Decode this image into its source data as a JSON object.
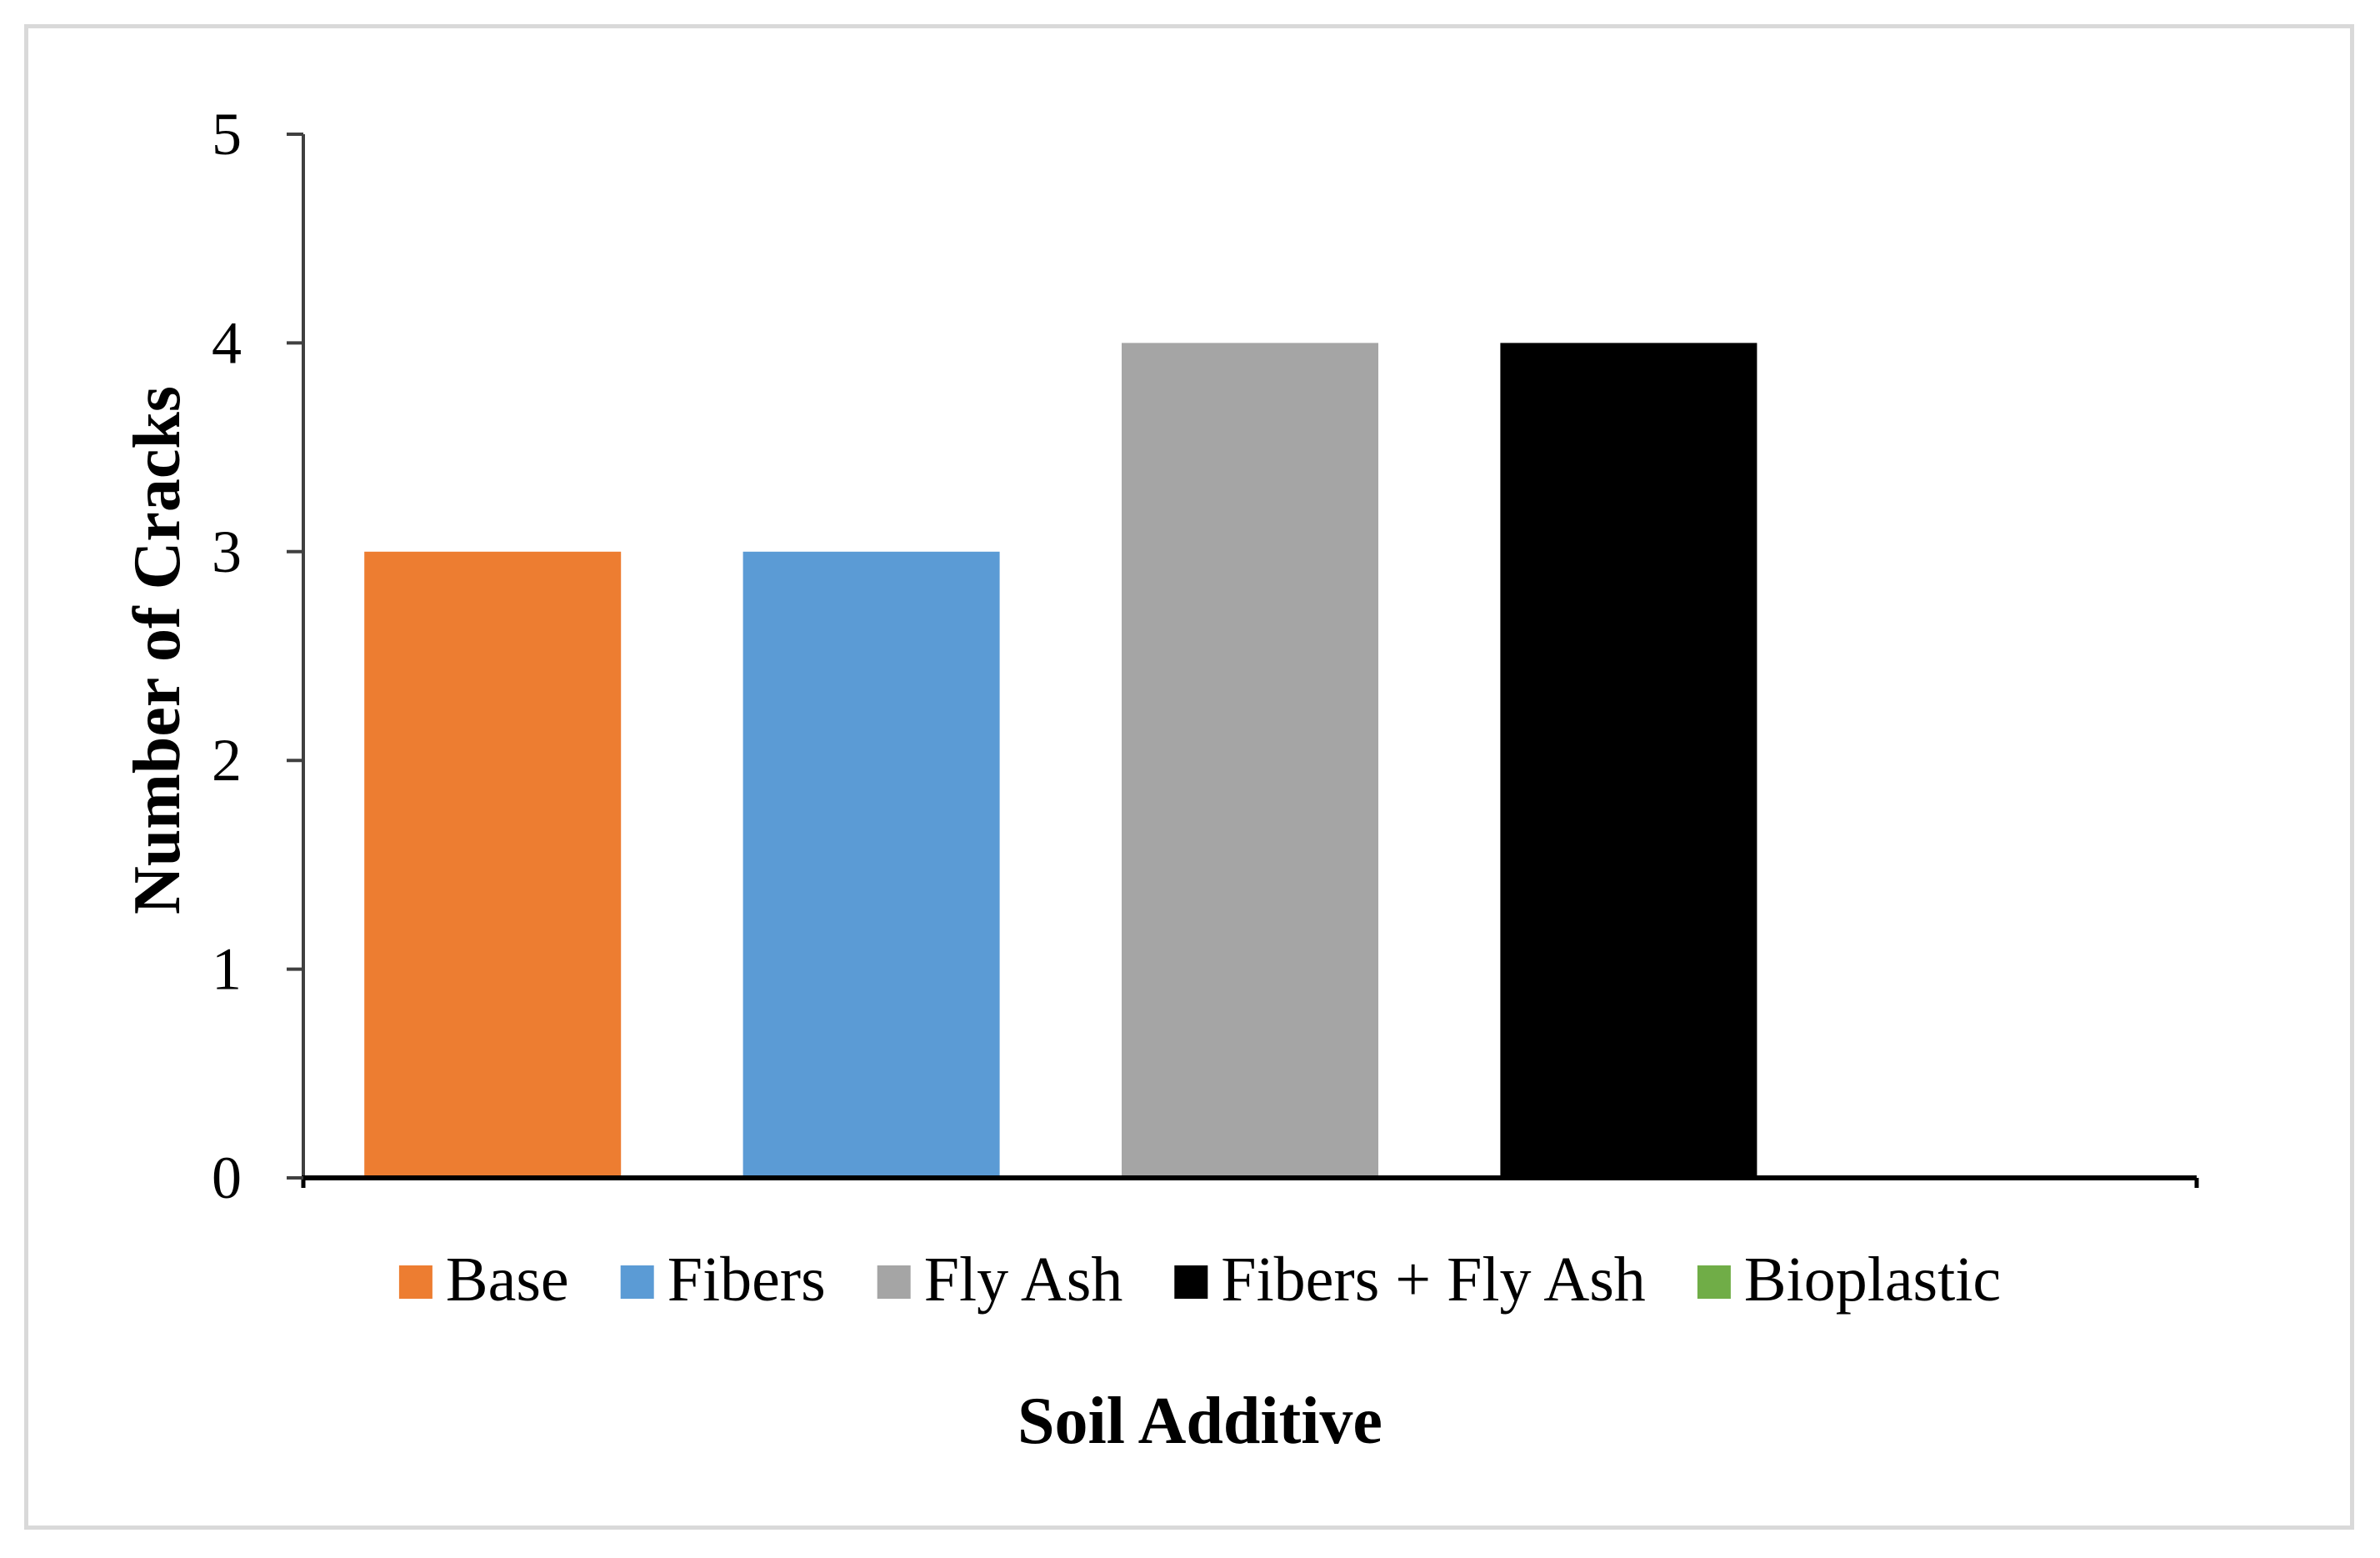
{
  "chart_data": {
    "type": "bar",
    "title": "",
    "xlabel": "Soil Additive",
    "ylabel": "Number of Cracks",
    "ylim": [
      0,
      5
    ],
    "yticks": [
      0,
      1,
      2,
      3,
      4,
      5
    ],
    "grid": false,
    "legend_position": "bottom",
    "series": [
      {
        "name": "Base",
        "value": 3,
        "color": "#ed7d31"
      },
      {
        "name": "Fibers",
        "value": 3,
        "color": "#5b9bd5"
      },
      {
        "name": "Fly Ash",
        "value": 4,
        "color": "#a5a5a5"
      },
      {
        "name": "Fibers + Fly Ash",
        "value": 4,
        "color": "#000000"
      },
      {
        "name": "Bioplastic",
        "value": 0,
        "color": "#70ad47"
      }
    ]
  }
}
